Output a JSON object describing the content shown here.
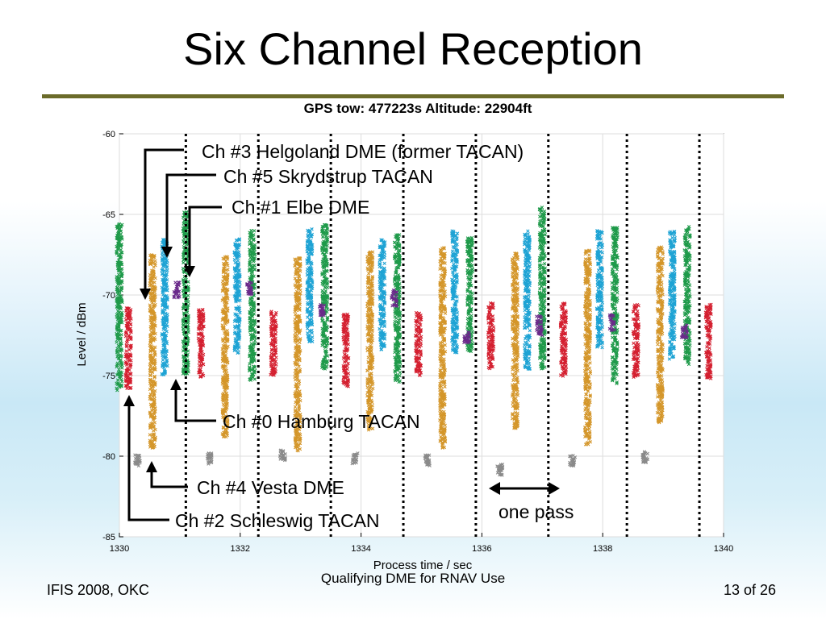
{
  "slide": {
    "title": "Six Channel Reception",
    "footer_left": "IFIS 2008, OKC",
    "footer_center": "Qualifying DME for RNAV Use",
    "footer_right": "13 of 26"
  },
  "chart_data": {
    "type": "scatter",
    "title": "GPS tow: 477223s  Altitude: 22904ft",
    "xlabel": "Process time / sec",
    "ylabel": "Level / dBm",
    "xlim": [
      1330,
      1340
    ],
    "ylim": [
      -85,
      -60
    ],
    "xticks": [
      1330,
      1332,
      1334,
      1336,
      1338,
      1340
    ],
    "yticks": [
      -60,
      -65,
      -70,
      -75,
      -80,
      -85
    ],
    "grid": true,
    "pass_boundaries": [
      1331.1,
      1332.3,
      1333.5,
      1334.7,
      1335.9,
      1337.1,
      1338.4,
      1339.6
    ],
    "series": [
      {
        "color": "#1f9a4a",
        "marker": "x",
        "segments": [
          {
            "x": 1330.0,
            "ymin": -76,
            "ymax": -65.6
          },
          {
            "x": 1331.1,
            "ymin": -75,
            "ymax": -64.8
          },
          {
            "x": 1332.2,
            "ymin": -75.3,
            "ymax": -66.0
          },
          {
            "x": 1333.4,
            "ymin": -74.6,
            "ymax": -65.6
          },
          {
            "x": 1334.6,
            "ymin": -75.5,
            "ymax": -66.2
          },
          {
            "x": 1335.8,
            "ymin": -73.5,
            "ymax": -66.4
          },
          {
            "x": 1337.0,
            "ymin": -74.6,
            "ymax": -64.5
          },
          {
            "x": 1338.2,
            "ymin": -75.5,
            "ymax": -65.8
          },
          {
            "x": 1339.4,
            "ymin": -74.3,
            "ymax": -65.7
          }
        ]
      },
      {
        "color": "#d42030",
        "marker": "x",
        "segments": [
          {
            "x": 1330.15,
            "ymin": -75.8,
            "ymax": -70.8
          },
          {
            "x": 1331.35,
            "ymin": -75.1,
            "ymax": -70.8
          },
          {
            "x": 1332.55,
            "ymin": -75.0,
            "ymax": -71.0
          },
          {
            "x": 1333.75,
            "ymin": -75.7,
            "ymax": -71.0
          },
          {
            "x": 1334.95,
            "ymin": -75.0,
            "ymax": -71.0
          },
          {
            "x": 1336.15,
            "ymin": -74.6,
            "ymax": -70.5
          },
          {
            "x": 1337.35,
            "ymin": -75.1,
            "ymax": -70.5
          },
          {
            "x": 1338.55,
            "ymin": -75.1,
            "ymax": -70.6
          },
          {
            "x": 1339.75,
            "ymin": -75.2,
            "ymax": -70.5
          }
        ]
      },
      {
        "color": "#d4962a",
        "marker": "x",
        "segments": [
          {
            "x": 1330.55,
            "ymin": -79.5,
            "ymax": -67.5
          },
          {
            "x": 1331.75,
            "ymin": -78.8,
            "ymax": -67.5
          },
          {
            "x": 1332.95,
            "ymin": -79.7,
            "ymax": -67.7
          },
          {
            "x": 1334.15,
            "ymin": -78.4,
            "ymax": -67.3
          },
          {
            "x": 1335.35,
            "ymin": -79.5,
            "ymax": -67.0
          },
          {
            "x": 1336.55,
            "ymin": -78.3,
            "ymax": -67.4
          },
          {
            "x": 1337.75,
            "ymin": -79.3,
            "ymax": -67.2
          },
          {
            "x": 1338.95,
            "ymin": -78.0,
            "ymax": -67.0
          }
        ]
      },
      {
        "color": "#1ea3d4",
        "marker": "x",
        "segments": [
          {
            "x": 1330.75,
            "ymin": -75.0,
            "ymax": -66.5
          },
          {
            "x": 1331.95,
            "ymin": -73.6,
            "ymax": -66.5
          },
          {
            "x": 1333.15,
            "ymin": -72.9,
            "ymax": -65.9
          },
          {
            "x": 1334.35,
            "ymin": -73.4,
            "ymax": -66.5
          },
          {
            "x": 1335.55,
            "ymin": -73.6,
            "ymax": -66.0
          },
          {
            "x": 1336.75,
            "ymin": -74.6,
            "ymax": -66.0
          },
          {
            "x": 1337.95,
            "ymin": -73.3,
            "ymax": -66.0
          },
          {
            "x": 1339.15,
            "ymin": -74.0,
            "ymax": -66.0
          }
        ]
      },
      {
        "color": "#6a2a8a",
        "marker": "x",
        "segments": [
          {
            "x": 1330.95,
            "ymin": -70.2,
            "ymax": -69.2
          },
          {
            "x": 1332.15,
            "ymin": -70.0,
            "ymax": -69.2
          },
          {
            "x": 1333.35,
            "ymin": -71.3,
            "ymax": -70.6
          },
          {
            "x": 1334.55,
            "ymin": -70.7,
            "ymax": -69.7
          },
          {
            "x": 1335.75,
            "ymin": -73.0,
            "ymax": -72.3
          },
          {
            "x": 1336.95,
            "ymin": -72.5,
            "ymax": -71.3
          },
          {
            "x": 1338.15,
            "ymin": -72.2,
            "ymax": -71.2
          },
          {
            "x": 1339.35,
            "ymin": -72.7,
            "ymax": -71.8
          }
        ]
      },
      {
        "color": "#8a8a8a",
        "marker": "x",
        "segments": [
          {
            "x": 1330.3,
            "ymin": -80.6,
            "ymax": -79.9
          },
          {
            "x": 1331.5,
            "ymin": -80.5,
            "ymax": -79.8
          },
          {
            "x": 1332.7,
            "ymin": -80.3,
            "ymax": -79.6
          },
          {
            "x": 1333.9,
            "ymin": -80.5,
            "ymax": -79.8
          },
          {
            "x": 1335.1,
            "ymin": -80.6,
            "ymax": -79.9
          },
          {
            "x": 1336.3,
            "ymin": -81.2,
            "ymax": -80.5
          },
          {
            "x": 1337.5,
            "ymin": -80.6,
            "ymax": -79.9
          },
          {
            "x": 1338.7,
            "ymin": -80.4,
            "ymax": -79.7
          }
        ]
      }
    ],
    "annotations": [
      {
        "text": "Ch #3  Helgoland DME (former TACAN)"
      },
      {
        "text": "Ch #5  Skrydstrup TACAN"
      },
      {
        "text": "Ch #1  Elbe DME"
      },
      {
        "text": "Ch #0  Hamburg TACAN"
      },
      {
        "text": "Ch #4  Vesta DME"
      },
      {
        "text": "Ch #2  Schleswig TACAN"
      },
      {
        "text": "one pass"
      }
    ]
  }
}
